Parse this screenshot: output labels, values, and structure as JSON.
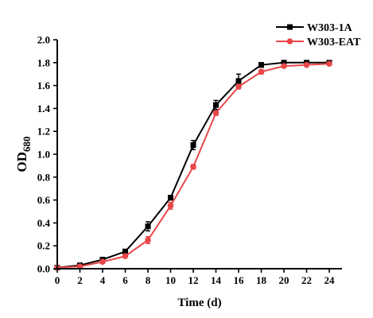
{
  "chart_data": {
    "type": "line",
    "title": "",
    "xlabel": "Time (d)",
    "ylabel_main": "OD",
    "ylabel_sub": "680",
    "xlim": [
      0,
      24
    ],
    "ylim": [
      0.0,
      2.0
    ],
    "x_ticks": [
      "0",
      "2",
      "4",
      "6",
      "8",
      "10",
      "12",
      "14",
      "16",
      "18",
      "20",
      "22",
      "24"
    ],
    "y_ticks": [
      "0.0",
      "0.2",
      "0.4",
      "0.6",
      "0.8",
      "1.0",
      "1.2",
      "1.4",
      "1.6",
      "1.8",
      "2.0"
    ],
    "grid": false,
    "legend_position": "top-right",
    "x": [
      0,
      2,
      4,
      6,
      8,
      10,
      12,
      14,
      16,
      18,
      20,
      22,
      24
    ],
    "series": [
      {
        "name": "W303-1A",
        "color": "#000000",
        "marker": "square",
        "values": [
          0.01,
          0.03,
          0.08,
          0.15,
          0.37,
          0.62,
          1.08,
          1.43,
          1.64,
          1.78,
          1.8,
          1.8,
          1.8
        ],
        "errors": [
          0.01,
          0.01,
          0.01,
          0.02,
          0.04,
          0.02,
          0.04,
          0.04,
          0.06,
          0.02,
          0.01,
          0.01,
          0.01
        ]
      },
      {
        "name": "W303-EAT",
        "color": "#e8474a",
        "marker": "circle",
        "values": [
          0.01,
          0.02,
          0.06,
          0.11,
          0.25,
          0.55,
          0.89,
          1.36,
          1.59,
          1.72,
          1.77,
          1.78,
          1.79
        ],
        "errors": [
          0.01,
          0.01,
          0.01,
          0.01,
          0.03,
          0.03,
          0.02,
          0.02,
          0.02,
          0.02,
          0.01,
          0.01,
          0.01
        ]
      }
    ]
  }
}
